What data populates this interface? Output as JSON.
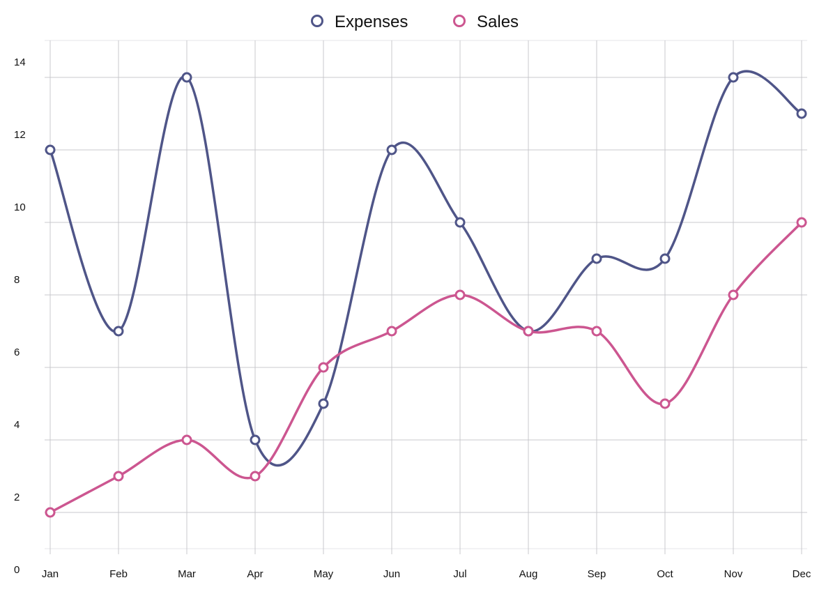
{
  "chart_data": {
    "type": "line",
    "title": "",
    "xlabel": "",
    "ylabel": "",
    "categories": [
      "Jan",
      "Feb",
      "Mar",
      "Apr",
      "May",
      "Jun",
      "Jul",
      "Aug",
      "Sep",
      "Oct",
      "Nov",
      "Dec"
    ],
    "y_ticks": [
      "0",
      "2",
      "4",
      "6",
      "8",
      "10",
      "12",
      "14"
    ],
    "ylim": [
      0,
      14
    ],
    "grid": true,
    "legend_position": "top-center",
    "smooth": true,
    "series": [
      {
        "name": "Expenses",
        "color": "#4f5588",
        "values": [
          11,
          6,
          13,
          3,
          4,
          11,
          9,
          6,
          8,
          8,
          13,
          12
        ]
      },
      {
        "name": "Sales",
        "color": "#cc5690",
        "values": [
          1,
          2,
          3,
          2,
          5,
          6,
          7,
          6,
          6,
          4,
          7,
          9
        ]
      }
    ]
  }
}
